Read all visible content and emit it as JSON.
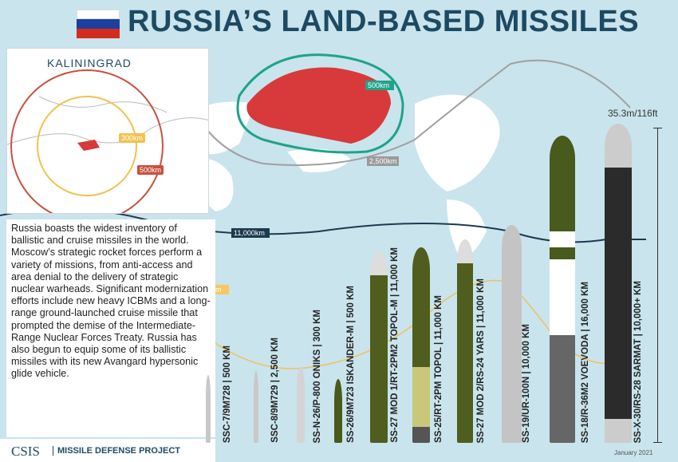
{
  "title": "RUSSIA’S LAND-BASED MISSILES",
  "inset": {
    "title": "KALININGRAD",
    "ranges": [
      "300km",
      "500km"
    ]
  },
  "map_ranges": {
    "russia": "500km",
    "gray": "2,500km",
    "dark": "11,000km",
    "yellow": "16,000km"
  },
  "description": "Russia boasts the widest inventory of ballistic and cruise missiles in the world. Moscow’s strategic rocket forces perform a variety of missions, from anti-access and area denial to the delivery of strategic nuclear warheads. Significant modernization efforts include new heavy ICBMs and a long-range ground-launched cruise missile that prompted the demise of the Intermediate-Range Nuclear Forces Treaty. Russia has also begun to equip some of its ballistic missiles with its new Avangard hypersonic glide vehicle.",
  "missiles": [
    {
      "label": "SSC-7/9M728 | 500 KM",
      "color": "#c8c8c8"
    },
    {
      "label": "SSC-8/9M729 | 2,500 KM",
      "color": "#c8c8c8"
    },
    {
      "label": "SS-N-26/P-800 ONIKS | 300 KM",
      "color": "#d4d4d4"
    },
    {
      "label": "SS-26/9M723 ISKANDER-M | 500 KM",
      "color": "#4a5a1c"
    },
    {
      "label": "SS-27 MOD 1/RT-2PM2 TOPOL-M | 11,000 KM",
      "color": "#4f5e1e"
    },
    {
      "label": "SS-25/RT-2PM TOPOL | 11,000 KM",
      "color": "#4f5e1e"
    },
    {
      "label": "SS-27 MOD 2/RS-24 YARS | 11,000 KM",
      "color": "#4f5e1e"
    },
    {
      "label": "SS-19/UR-100N | 10,000 KM",
      "color": "#c4c4c4"
    },
    {
      "label": "SS-18/R-36M2 VOEVODA | 16,000 KM",
      "color": "#485a1c"
    },
    {
      "label": "SS-X-30/RS-28 SARMAT | 10,000+ KM",
      "color": "#2b2b2b"
    }
  ],
  "height_label": "35.3m/116ft",
  "footer": {
    "org": "CSIS",
    "project": "MISSILE DEFENSE PROJECT",
    "date": "January 2021"
  }
}
